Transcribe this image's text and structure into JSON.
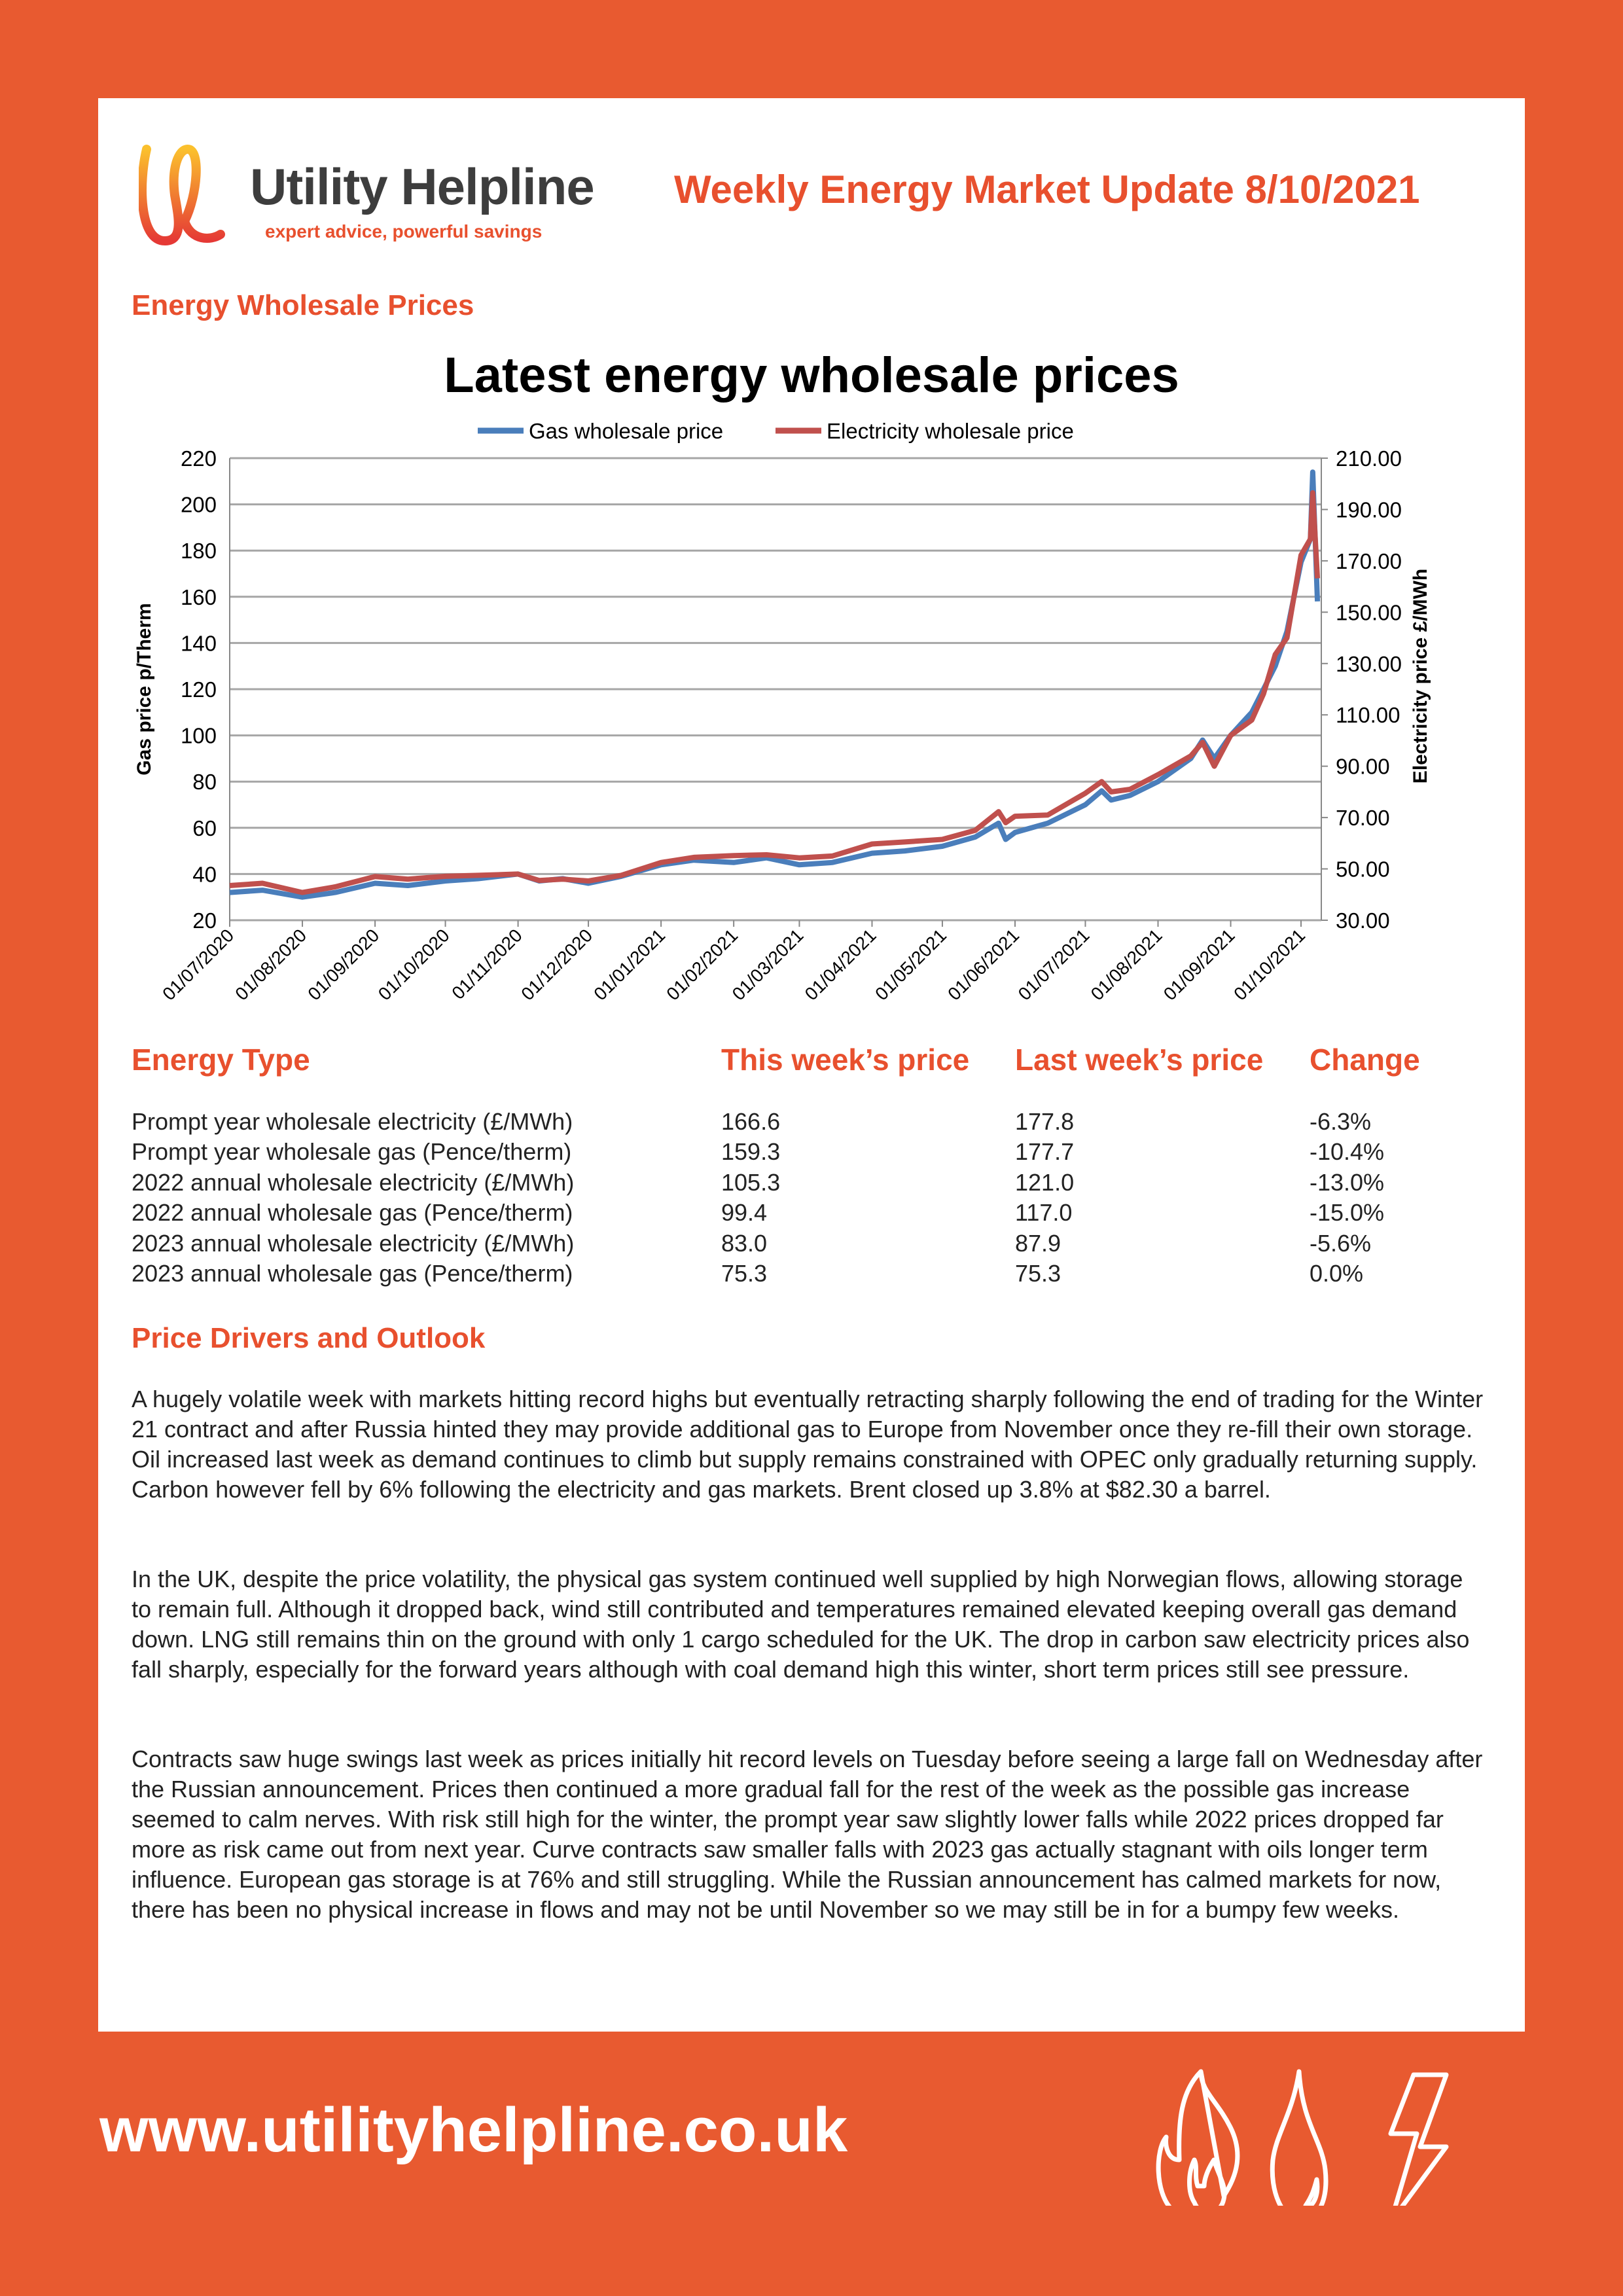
{
  "header": {
    "brand": "Utility Helpline",
    "tagline": "expert advice, powerful savings",
    "title": "Weekly Energy Market Update 8/10/2021"
  },
  "section1": "Energy Wholesale Prices",
  "chart_data": {
    "type": "line",
    "title": "Latest energy wholesale prices",
    "legend": [
      "Gas wholesale price",
      "Electricity wholesale price"
    ],
    "legend_position": "top",
    "ylabel": "Gas price p/Therm",
    "y2label": "Electricity price £/MWh",
    "ylim": [
      20,
      220
    ],
    "yticks": [
      20,
      40,
      60,
      80,
      100,
      120,
      140,
      160,
      180,
      200,
      220
    ],
    "y2lim": [
      30,
      210
    ],
    "y2ticks": [
      "30.00",
      "50.00",
      "70.00",
      "90.00",
      "110.00",
      "130.00",
      "150.00",
      "170.00",
      "190.00",
      "210.00"
    ],
    "xticks": [
      "01/07/2020",
      "01/08/2020",
      "01/09/2020",
      "01/10/2020",
      "01/11/2020",
      "01/12/2020",
      "01/01/2021",
      "01/02/2021",
      "01/03/2021",
      "01/04/2021",
      "01/05/2021",
      "01/06/2021",
      "01/07/2021",
      "01/08/2021",
      "01/09/2021",
      "01/10/2021"
    ],
    "grid": true,
    "series": [
      {
        "name": "Gas wholesale price",
        "color": "#4a7ebb",
        "axis": "left",
        "x": [
          "2020-07-01",
          "2020-07-15",
          "2020-08-01",
          "2020-08-15",
          "2020-09-01",
          "2020-09-15",
          "2020-10-01",
          "2020-10-15",
          "2020-11-01",
          "2020-11-10",
          "2020-11-20",
          "2020-12-01",
          "2020-12-15",
          "2021-01-01",
          "2021-01-15",
          "2021-02-01",
          "2021-02-15",
          "2021-03-01",
          "2021-03-15",
          "2021-04-01",
          "2021-04-15",
          "2021-05-01",
          "2021-05-15",
          "2021-05-25",
          "2021-05-28",
          "2021-06-01",
          "2021-06-15",
          "2021-07-01",
          "2021-07-08",
          "2021-07-12",
          "2021-07-20",
          "2021-08-01",
          "2021-08-15",
          "2021-08-20",
          "2021-08-25",
          "2021-09-01",
          "2021-09-10",
          "2021-09-15",
          "2021-09-20",
          "2021-09-25",
          "2021-10-01",
          "2021-10-05",
          "2021-10-06",
          "2021-10-08"
        ],
        "values": [
          32,
          33,
          30,
          32,
          36,
          35,
          37,
          38,
          40,
          37,
          38,
          36,
          39,
          44,
          46,
          45,
          47,
          44,
          45,
          49,
          50,
          52,
          56,
          62,
          55,
          58,
          62,
          70,
          76,
          72,
          74,
          80,
          90,
          98,
          90,
          100,
          110,
          120,
          130,
          145,
          175,
          185,
          214,
          158
        ]
      },
      {
        "name": "Electricity wholesale price",
        "color": "#c0504d",
        "axis": "right",
        "x": [
          "2020-07-01",
          "2020-07-15",
          "2020-08-01",
          "2020-08-15",
          "2020-09-01",
          "2020-09-15",
          "2020-10-01",
          "2020-10-15",
          "2020-11-01",
          "2020-11-10",
          "2020-11-20",
          "2020-12-01",
          "2020-12-15",
          "2021-01-01",
          "2021-01-15",
          "2021-02-01",
          "2021-02-15",
          "2021-03-01",
          "2021-03-15",
          "2021-04-01",
          "2021-04-15",
          "2021-05-01",
          "2021-05-15",
          "2021-05-25",
          "2021-05-28",
          "2021-06-01",
          "2021-06-15",
          "2021-07-01",
          "2021-07-08",
          "2021-07-12",
          "2021-07-20",
          "2021-08-01",
          "2021-08-15",
          "2021-08-20",
          "2021-08-25",
          "2021-09-01",
          "2021-09-10",
          "2021-09-15",
          "2021-09-20",
          "2021-09-25",
          "2021-10-01",
          "2021-10-05",
          "2021-10-06",
          "2021-10-08"
        ],
        "values": [
          43.5,
          44.4,
          40.8,
          43,
          47,
          46,
          47.1,
          47.5,
          48,
          45.5,
          46,
          45.3,
          47.5,
          52.5,
          54.5,
          55.2,
          55.5,
          54.3,
          55,
          59.7,
          60.5,
          61.5,
          65,
          72.3,
          68,
          70.5,
          71,
          79.5,
          84,
          80,
          81,
          86.7,
          94,
          99.3,
          90,
          102,
          108,
          118.2,
          133.5,
          140,
          172.2,
          178.5,
          196.5,
          163.2
        ]
      }
    ]
  },
  "table": {
    "headers": [
      "Energy Type",
      "This week’s price",
      "Last week’s price",
      "Change"
    ],
    "rows": [
      [
        "Prompt year wholesale electricity (£/MWh)",
        "166.6",
        "177.8",
        "-6.3%"
      ],
      [
        "Prompt year wholesale gas (Pence/therm)",
        "159.3",
        "177.7",
        "-10.4%"
      ],
      [
        "2022 annual wholesale electricity (£/MWh)",
        "105.3",
        "121.0",
        "-13.0%"
      ],
      [
        "2022 annual wholesale gas (Pence/therm)",
        "99.4",
        "117.0",
        "-15.0%"
      ],
      [
        "2023 annual wholesale electricity (£/MWh)",
        "83.0",
        "87.9",
        "-5.6%"
      ],
      [
        "2023 annual wholesale gas (Pence/therm)",
        "75.3",
        "75.3",
        "0.0%"
      ]
    ]
  },
  "section2": "Price Drivers and Outlook",
  "paragraphs": [
    "A hugely volatile week with markets hitting record highs but eventually retracting sharply following the end of trading for the Winter 21 contract and after Russia hinted they may provide additional gas to Europe from November once they re-fill their own storage. Oil increased last week as demand continues to climb but supply remains constrained with OPEC only gradually returning supply. Carbon however fell by 6% following the electricity and gas markets. Brent closed up 3.8% at $82.30 a barrel.",
    "In the UK, despite the price volatility, the physical gas system continued well supplied by high Norwegian flows, allowing storage to remain full. Although it dropped back, wind still contributed and temperatures remained elevated keeping overall gas demand down. LNG still remains thin on the ground with only 1 cargo scheduled for the UK. The drop in carbon saw electricity prices also fall sharply, especially for the forward years although with coal demand high this winter, short term prices still see pressure.",
    "Contracts saw huge swings last week as prices initially hit record levels on Tuesday before seeing a large fall on Wednesday after the Russian announcement. Prices then continued a more gradual fall for the rest of the week as the possible gas increase seemed to calm nerves. With risk still high for the winter, the prompt year saw slightly lower falls while 2022 prices dropped far more as risk came out from next year. Curve contracts saw smaller falls with 2023 gas actually stagnant with oils longer term influence. European gas storage is at 76% and still struggling. While the Russian announcement has calmed markets for now, there has been no physical increase in flows and may not be until November so we may still be in for a bumpy few weeks."
  ],
  "footer": {
    "url": "www.utilityhelpline.co.uk",
    "icons": [
      "flame-icon",
      "water-drop-icon",
      "lightning-icon"
    ]
  }
}
